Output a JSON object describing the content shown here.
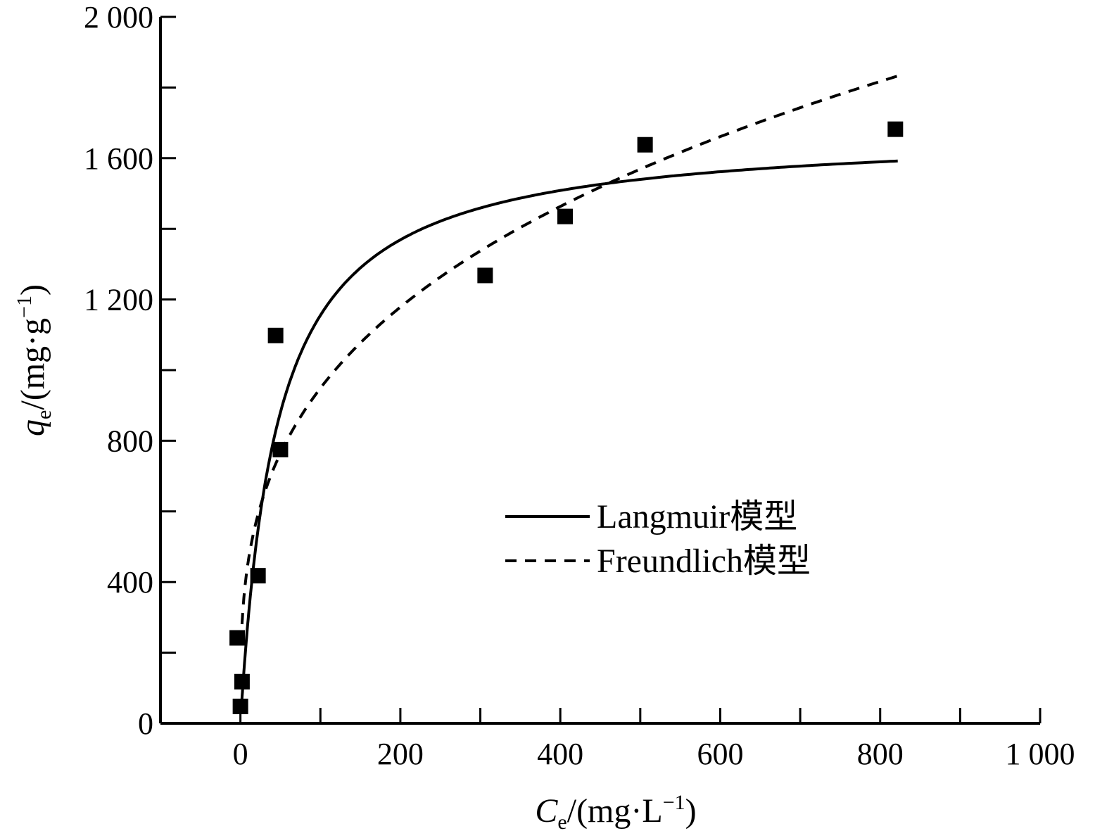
{
  "chart_data": {
    "type": "scatter",
    "x_axis": {
      "range": [
        -100,
        1000
      ],
      "ticks": [
        0,
        200,
        400,
        600,
        800,
        1000
      ],
      "tick_labels": [
        "0",
        "200",
        "400",
        "600",
        "800",
        "1 000"
      ],
      "minor_ticks": [
        -100,
        100,
        300,
        500,
        700,
        900
      ],
      "label_main": "C",
      "label_sub": "e",
      "label_unit": "/(mg·L",
      "label_sup": "−1",
      "label_close": ")"
    },
    "y_axis": {
      "range": [
        0,
        2000
      ],
      "ticks": [
        0,
        400,
        800,
        1200,
        1600,
        2000
      ],
      "tick_labels": [
        "0",
        "400",
        "800",
        "1 200",
        "1 600",
        "2 000"
      ],
      "minor_ticks": [
        200,
        600,
        1000,
        1400,
        1800
      ],
      "label_main": "q",
      "label_sub": "e",
      "label_unit": "/(mg·g",
      "label_sup": "−1",
      "label_close": ")"
    },
    "grid": false,
    "legend_position": "center-right",
    "experimental_points": [
      {
        "x": -4,
        "y": 242
      },
      {
        "x": 0,
        "y": 48
      },
      {
        "x": 2,
        "y": 118
      },
      {
        "x": 22,
        "y": 418
      },
      {
        "x": 44,
        "y": 1098
      },
      {
        "x": 50,
        "y": 775
      },
      {
        "x": 306,
        "y": 1268
      },
      {
        "x": 406,
        "y": 1435
      },
      {
        "x": 506,
        "y": 1638
      },
      {
        "x": 819,
        "y": 1682
      }
    ],
    "series": [
      {
        "name": "Langmuir模型",
        "style": "solid",
        "model": "langmuir",
        "qm": 1680,
        "KL": 0.022,
        "x_range": [
          1,
          822
        ]
      },
      {
        "name": "Freundlich模型",
        "style": "dashed",
        "model": "freundlich",
        "KF": 225,
        "n": 3.2,
        "x_range": [
          1,
          822
        ]
      }
    ],
    "colors": {
      "line": "#000000",
      "marker": "#000000",
      "background": "#ffffff"
    }
  }
}
